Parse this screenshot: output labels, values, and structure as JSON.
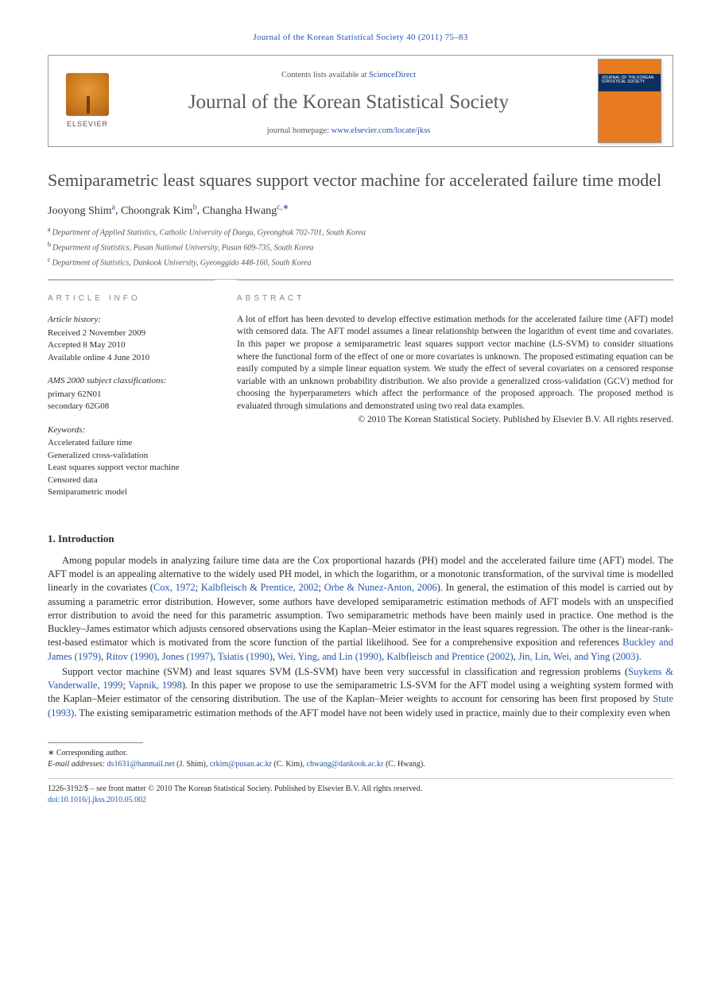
{
  "top_banner": "Journal of the Korean Statistical Society 40 (2011) 75–83",
  "header": {
    "contents_prefix": "Contents lists available at ",
    "contents_link": "ScienceDirect",
    "journal_name": "Journal of the Korean Statistical Society",
    "homepage_prefix": "journal homepage: ",
    "homepage_url": "www.elsevier.com/locate/jkss",
    "elsevier_label": "ELSEVIER",
    "cover_text": "JOURNAL OF THE KOREAN STATISTICAL SOCIETY"
  },
  "title": "Semiparametric least squares support vector machine for accelerated failure time model",
  "authors": [
    {
      "name": "Jooyong Shim",
      "mark": "a"
    },
    {
      "name": "Choongrak Kim",
      "mark": "b"
    },
    {
      "name": "Changha Hwang",
      "mark": "c,∗"
    }
  ],
  "affiliations": [
    {
      "mark": "a",
      "text": "Department of Applied Statistics, Catholic University of Daegu, Gyeongbuk 702-701, South Korea"
    },
    {
      "mark": "b",
      "text": "Department of Statistics, Pusan National University, Pusan 609-735, South Korea"
    },
    {
      "mark": "c",
      "text": "Department of Statistics, Dankook University, Gyeonggido 448-160, South Korea"
    }
  ],
  "article_info": {
    "label": "ARTICLE INFO",
    "history_label": "Article history:",
    "history": [
      "Received 2 November 2009",
      "Accepted 8 May 2010",
      "Available online 4 June 2010"
    ],
    "ams_label": "AMS 2000 subject classifications:",
    "ams": [
      "primary 62N01",
      "secondary 62G08"
    ],
    "keywords_label": "Keywords:",
    "keywords": [
      "Accelerated failure time",
      "Generalized cross-validation",
      "Least squares support vector machine",
      "Censored data",
      "Semiparametric model"
    ]
  },
  "abstract": {
    "label": "ABSTRACT",
    "text": "A lot of effort has been devoted to develop effective estimation methods for the accelerated failure time (AFT) model with censored data. The AFT model assumes a linear relationship between the logarithm of event time and covariates. In this paper we propose a semiparametric least squares support vector machine (LS-SVM) to consider situations where the functional form of the effect of one or more covariates is unknown. The proposed estimating equation can be easily computed by a simple linear equation system. We study the effect of several covariates on a censored response variable with an unknown probability distribution. We also provide a generalized cross-validation (GCV) method for choosing the hyperparameters which affect the performance of the proposed approach. The proposed method is evaluated through simulations and demonstrated using two real data examples.",
    "copyright": "© 2010 The Korean Statistical Society. Published by Elsevier B.V. All rights reserved."
  },
  "section1": {
    "heading": "1. Introduction",
    "para1_parts": {
      "p1": "Among popular models in analyzing failure time data are the Cox proportional hazards (PH) model and the accelerated failure time (AFT) model. The AFT model is an appealing alternative to the widely used PH model, in which the logarithm, or a monotonic transformation, of the survival time is modelled linearly in the covariates (",
      "l1": "Cox, 1972",
      "s1": "; ",
      "l2": "Kalbfleisch & Prentice, 2002",
      "s2": "; ",
      "l3": "Orbe & Nunez-Anton, 2006",
      "p2": "). In general, the estimation of this model is carried out by assuming a parametric error distribution. However, some authors have developed semiparametric estimation methods of AFT models with an unspecified error distribution to avoid the need for this parametric assumption. Two semiparametric methods have been mainly used in practice. One method is the Buckley–James estimator which adjusts censored observations using the Kaplan–Meier estimator in the least squares regression. The other is the linear-rank-test-based estimator which is motivated from the score function of the partial likelihood. See for a comprehensive exposition and references ",
      "l4": "Buckley and James (1979)",
      "s4": ", ",
      "l5": "Ritov (1990)",
      "s5": ", ",
      "l6": "Jones (1997)",
      "s6": ", ",
      "l7": "Tsiatis (1990)",
      "s7": ", ",
      "l8": "Wei, Ying, and Lin (1990)",
      "s8": ", ",
      "l9": "Kalbfleisch and Prentice (2002)",
      "s9": ", ",
      "l10": "Jin, Lin, Wei, and Ying (2003)",
      "p3": "."
    },
    "para2_parts": {
      "p1": "Support vector machine (SVM) and least squares SVM (LS-SVM) have been very successful in classification and regression problems (",
      "l1": "Suykens & Vanderwalle, 1999",
      "s1": "; ",
      "l2": "Vapnik, 1998",
      "p2": "). In this paper we propose to use the semiparametric LS-SVM for the AFT model using a weighting system formed with the Kaplan–Meier estimator of the censoring distribution. The use of the Kaplan–Meier weights to account for censoring has been first proposed by ",
      "l3": "Stute (1993)",
      "p3": ". The existing semiparametric estimation methods of the AFT model have not been widely used in practice, mainly due to their complexity even when"
    }
  },
  "footnotes": {
    "corr_label": "∗ Corresponding author.",
    "email_label": "E-mail addresses: ",
    "emails": [
      {
        "addr": "ds1631@hanmail.net",
        "who": " (J. Shim), "
      },
      {
        "addr": "crkim@pusan.ac.kr",
        "who": " (C. Kim), "
      },
      {
        "addr": "chwang@dankook.ac.kr",
        "who": " (C. Hwang)."
      }
    ]
  },
  "bottom": {
    "line1": "1226-3192/$ – see front matter © 2010 The Korean Statistical Society. Published by Elsevier B.V. All rights reserved.",
    "doi_label": "doi:",
    "doi": "10.1016/j.jkss.2010.05.002"
  }
}
